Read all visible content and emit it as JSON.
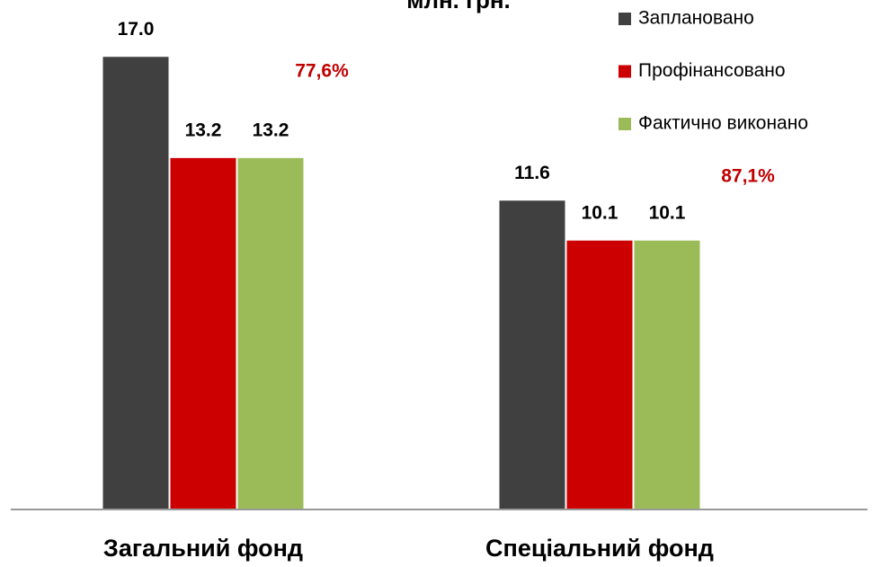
{
  "chart_data": {
    "type": "bar",
    "title": "млн. грн.",
    "categories": [
      "Загальний фонд",
      "Спеціальний фонд"
    ],
    "series": [
      {
        "name": "Заплановано",
        "color": "#404040",
        "values": [
          17,
          11.6
        ],
        "value_labels": [
          "17.0",
          "11.6"
        ]
      },
      {
        "name": "Профінансовано",
        "color": "#cc0000",
        "values": [
          13.2,
          10.1
        ],
        "value_labels": [
          "13.2",
          "10.1"
        ]
      },
      {
        "name": "Фактично виконано",
        "color": "#9bbb59",
        "values": [
          13.2,
          10.1
        ],
        "value_labels": [
          "13.2",
          "10.1"
        ]
      }
    ],
    "annotations": [
      "77,6%",
      "87,1%"
    ],
    "ylim": [
      0,
      19
    ],
    "legend": "top-right"
  }
}
